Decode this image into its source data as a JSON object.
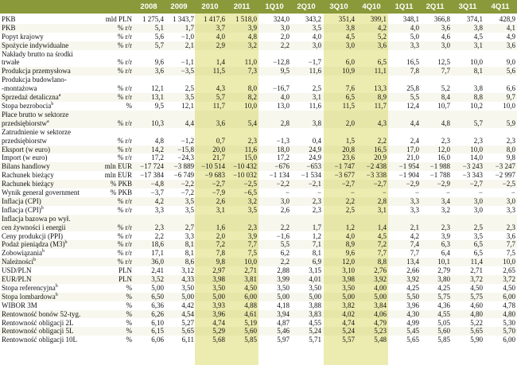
{
  "columns": [
    "2008",
    "2009",
    "2010",
    "2011",
    "1Q10",
    "2Q10",
    "3Q10",
    "4Q10",
    "1Q11",
    "2Q11",
    "3Q11",
    "4Q11"
  ],
  "rows": [
    {
      "label": "PKB",
      "unit": "mld PLN",
      "values": [
        "1 275,4",
        "1 343,7",
        "1 417,6",
        "1 518,0",
        "324,0",
        "343,2",
        "351,4",
        "399,1",
        "348,1",
        "366,8",
        "374,1",
        "428,9"
      ]
    },
    {
      "label": "PKB",
      "unit": "% r/r",
      "values": [
        "5,1",
        "1,7",
        "3,7",
        "3,9",
        "3,0",
        "3,5",
        "3,8",
        "4,2",
        "4,0",
        "3,6",
        "3,8",
        "4,1"
      ]
    },
    {
      "label": "Popyt krajowy",
      "unit": "% r/r",
      "values": [
        "5,6",
        "−1,0",
        "4,0",
        "4,8",
        "2,0",
        "4,0",
        "4,5",
        "5,2",
        "5,0",
        "4,6",
        "4,5",
        "4,9"
      ]
    },
    {
      "label": "Spożycie indywidualne",
      "unit": "% r/r",
      "values": [
        "5,7",
        "2,1",
        "2,9",
        "3,2",
        "2,2",
        "3,0",
        "3,0",
        "3,6",
        "3,3",
        "3,0",
        "3,1",
        "3,6"
      ]
    },
    {
      "label": "Nakłady brutto na środki",
      "label2": "trwałe",
      "unit": "% r/r",
      "values": [
        "9,6",
        "−1,1",
        "1,4",
        "11,0",
        "−12,8",
        "−1,7",
        "6,0",
        "6,5",
        "16,5",
        "12,5",
        "10,0",
        "9,0"
      ]
    },
    {
      "label": "Produkcja przemysłowa",
      "unit": "% r/r",
      "values": [
        "3,6",
        "−3,5",
        "11,5",
        "7,3",
        "9,5",
        "11,6",
        "10,9",
        "11,1",
        "7,8",
        "7,7",
        "8,1",
        "5,6"
      ]
    },
    {
      "label": "Produkcja budowlano-",
      "label2": "-montażowa",
      "unit": "% r/r",
      "values": [
        "12,1",
        "2,5",
        "4,3",
        "8,0",
        "−16,7",
        "2,5",
        "7,6",
        "13,3",
        "25,8",
        "5,2",
        "3,8",
        "6,6"
      ]
    },
    {
      "label": "Sprzedaż detaliczna",
      "sup": "a",
      "unit": "% r/r",
      "values": [
        "13,1",
        "3,5",
        "5,7",
        "8,2",
        "4,0",
        "3,1",
        "6,5",
        "8,9",
        "5,5",
        "8,4",
        "8,8",
        "9,7"
      ]
    },
    {
      "label": "Stopa bezrobocia",
      "sup": "b",
      "unit": "%",
      "values": [
        "9,5",
        "12,1",
        "11,7",
        "10,0",
        "13,0",
        "11,6",
        "11,5",
        "11,7",
        "12,4",
        "10,7",
        "10,2",
        "10,0"
      ]
    },
    {
      "label": "Płace brutto w sektorze",
      "label2": "przedsiębiorstw",
      "sup": "a",
      "unit": "% r/r",
      "values": [
        "10,3",
        "4,4",
        "3,6",
        "5,4",
        "2,8",
        "3,8",
        "2,0",
        "4,3",
        "4,4",
        "4,8",
        "5,7",
        "5,9"
      ]
    },
    {
      "label": "Zatrudnienie w sektorze",
      "label2": "przedsiębiorstw",
      "unit": "% r/r",
      "values": [
        "4,8",
        "−1,2",
        "0,7",
        "2,3",
        "−1,3",
        "0,4",
        "1,5",
        "2,2",
        "2,4",
        "2,3",
        "2,3",
        "2,3"
      ]
    },
    {
      "label": "Eksport (w euro)",
      "unit": "% r/r",
      "values": [
        "14,2",
        "−15,8",
        "20,0",
        "11,6",
        "18,0",
        "24,9",
        "20,8",
        "16,5",
        "17,0",
        "12,0",
        "10,0",
        "8,0"
      ]
    },
    {
      "label": "Import (w euro)",
      "unit": "% r/r",
      "values": [
        "17,2",
        "−24,3",
        "21,7",
        "15,0",
        "17,2",
        "24,9",
        "23,6",
        "20,9",
        "21,0",
        "16,0",
        "14,0",
        "9,8"
      ]
    },
    {
      "label": "Bilans handlowy",
      "unit": "mln EUR",
      "values": [
        "−17 724",
        "−3 889",
        "−10 514",
        "−10 432",
        "−676",
        "−653",
        "−1 747",
        "−2 438",
        "−1 954",
        "−1 988",
        "−3 243",
        "−3 247"
      ]
    },
    {
      "label": "Rachunek bieżący",
      "unit": "mln EUR",
      "values": [
        "−17 384",
        "−6 749",
        "−9 683",
        "−10 032",
        "−1 134",
        "−1 534",
        "−3 677",
        "−3 338",
        "−1 904",
        "−1 788",
        "−3 343",
        "−2 997"
      ]
    },
    {
      "label": "Rachunek bieżący",
      "unit": "% PKB",
      "values": [
        "−4,8",
        "−2,2",
        "−2,7",
        "−2,5",
        "−2,2",
        "−2,1",
        "−2,7",
        "−2,7",
        "−2,9",
        "−2,9",
        "−2,7",
        "−2,5"
      ]
    },
    {
      "label": "Wynik general government",
      "unit": "% PKB",
      "values": [
        "−3,7",
        "−7,2",
        "−7,9",
        "−6,5",
        "−",
        "−",
        "−",
        "−",
        "−",
        "−",
        "−",
        "−"
      ]
    },
    {
      "label": "Inflacja (CPI)",
      "unit": "% r/r",
      "values": [
        "4,2",
        "3,5",
        "2,6",
        "3,2",
        "3,0",
        "2,3",
        "2,2",
        "2,8",
        "3,3",
        "3,4",
        "3,0",
        "3,0"
      ]
    },
    {
      "label": "Inflacja (CPI)",
      "sup": "b",
      "unit": "% r/r",
      "values": [
        "3,3",
        "3,5",
        "3,1",
        "3,5",
        "2,6",
        "2,3",
        "2,5",
        "3,1",
        "3,3",
        "3,2",
        "3,0",
        "3,3"
      ]
    },
    {
      "label": "Inflacja bazowa po wył.",
      "label2": "cen żywności i energii",
      "unit": "% r/r",
      "values": [
        "2,3",
        "2,7",
        "1,6",
        "2,3",
        "2,2",
        "1,7",
        "1,2",
        "1,4",
        "2,1",
        "2,3",
        "2,5",
        "2,3"
      ]
    },
    {
      "label": "Ceny produkcji (PPI)",
      "unit": "% r/r",
      "values": [
        "2,2",
        "3,3",
        "2,0",
        "3,9",
        "−1,6",
        "1,2",
        "4,0",
        "4,5",
        "4,2",
        "3,9",
        "3,5",
        "3,6"
      ]
    },
    {
      "label": "Podaż pieniądza (M3)",
      "sup": "b",
      "unit": "% r/r",
      "values": [
        "18,6",
        "8,1",
        "7,2",
        "7,7",
        "5,5",
        "7,1",
        "8,9",
        "7,2",
        "7,4",
        "6,3",
        "6,5",
        "7,7"
      ]
    },
    {
      "label": "Zobowiązania",
      "sup": "b",
      "unit": "% r/r",
      "values": [
        "17,1",
        "8,1",
        "7,8",
        "7,5",
        "6,2",
        "8,1",
        "9,6",
        "7,7",
        "7,7",
        "6,4",
        "6,5",
        "7,5"
      ]
    },
    {
      "label": "Należności",
      "sup": "b",
      "unit": "% r/r",
      "values": [
        "36,0",
        "8,6",
        "9,8",
        "10,0",
        "2,2",
        "6,9",
        "12,0",
        "8,8",
        "13,4",
        "10,1",
        "11,4",
        "10,0"
      ]
    },
    {
      "label": "USD/PLN",
      "unit": "PLN",
      "values": [
        "2,41",
        "3,12",
        "2,97",
        "2,71",
        "2,88",
        "3,15",
        "3,10",
        "2,76",
        "2,66",
        "2,79",
        "2,71",
        "2,65"
      ]
    },
    {
      "label": "EUR/PLN",
      "unit": "PLN",
      "values": [
        "3,52",
        "4,33",
        "3,98",
        "3,81",
        "3,99",
        "4,01",
        "3,98",
        "3,92",
        "3,92",
        "3,80",
        "3,72",
        "3,72"
      ]
    },
    {
      "label": "Stopa referencyjna",
      "sup": "b",
      "unit": "%",
      "values": [
        "5,00",
        "3,50",
        "3,50",
        "4,50",
        "3,50",
        "3,50",
        "3,50",
        "4,00",
        "4,25",
        "4,25",
        "4,50",
        "4,50"
      ]
    },
    {
      "label": "Stopa lombardowa",
      "sup": "b",
      "unit": "%",
      "values": [
        "6,50",
        "5,00",
        "5,00",
        "6,00",
        "5,00",
        "5,00",
        "5,00",
        "5,00",
        "5,50",
        "5,75",
        "5,75",
        "6,00"
      ]
    },
    {
      "label": "WIBOR 3M",
      "unit": "%",
      "values": [
        "6,36",
        "4,42",
        "3,93",
        "4,88",
        "4,18",
        "3,88",
        "3,82",
        "3,84",
        "3,96",
        "4,36",
        "4,60",
        "4,78"
      ]
    },
    {
      "label": "Rentowność bonów 52-tyg.",
      "unit": "%",
      "values": [
        "6,26",
        "4,54",
        "3,96",
        "4,61",
        "3,94",
        "3,83",
        "4,02",
        "4,06",
        "4,30",
        "4,55",
        "4,80",
        "4,80"
      ]
    },
    {
      "label": "Rentowność obligacji 2L",
      "unit": "%",
      "values": [
        "6,10",
        "5,27",
        "4,74",
        "5,19",
        "4,87",
        "4,55",
        "4,74",
        "4,79",
        "4,99",
        "5,05",
        "5,22",
        "5,30"
      ]
    },
    {
      "label": "Rentowność obligacji 5L",
      "unit": "%",
      "values": [
        "6,15",
        "5,65",
        "5,29",
        "5,60",
        "5,46",
        "5,24",
        "5,24",
        "5,23",
        "5,45",
        "5,60",
        "5,65",
        "5,70"
      ]
    },
    {
      "label": "Rentowność obligacji 10L",
      "unit": "%",
      "values": [
        "6,06",
        "6,11",
        "5,68",
        "5,85",
        "5,97",
        "5,71",
        "5,57",
        "5,48",
        "5,65",
        "5,85",
        "5,90",
        "6,00"
      ]
    }
  ]
}
